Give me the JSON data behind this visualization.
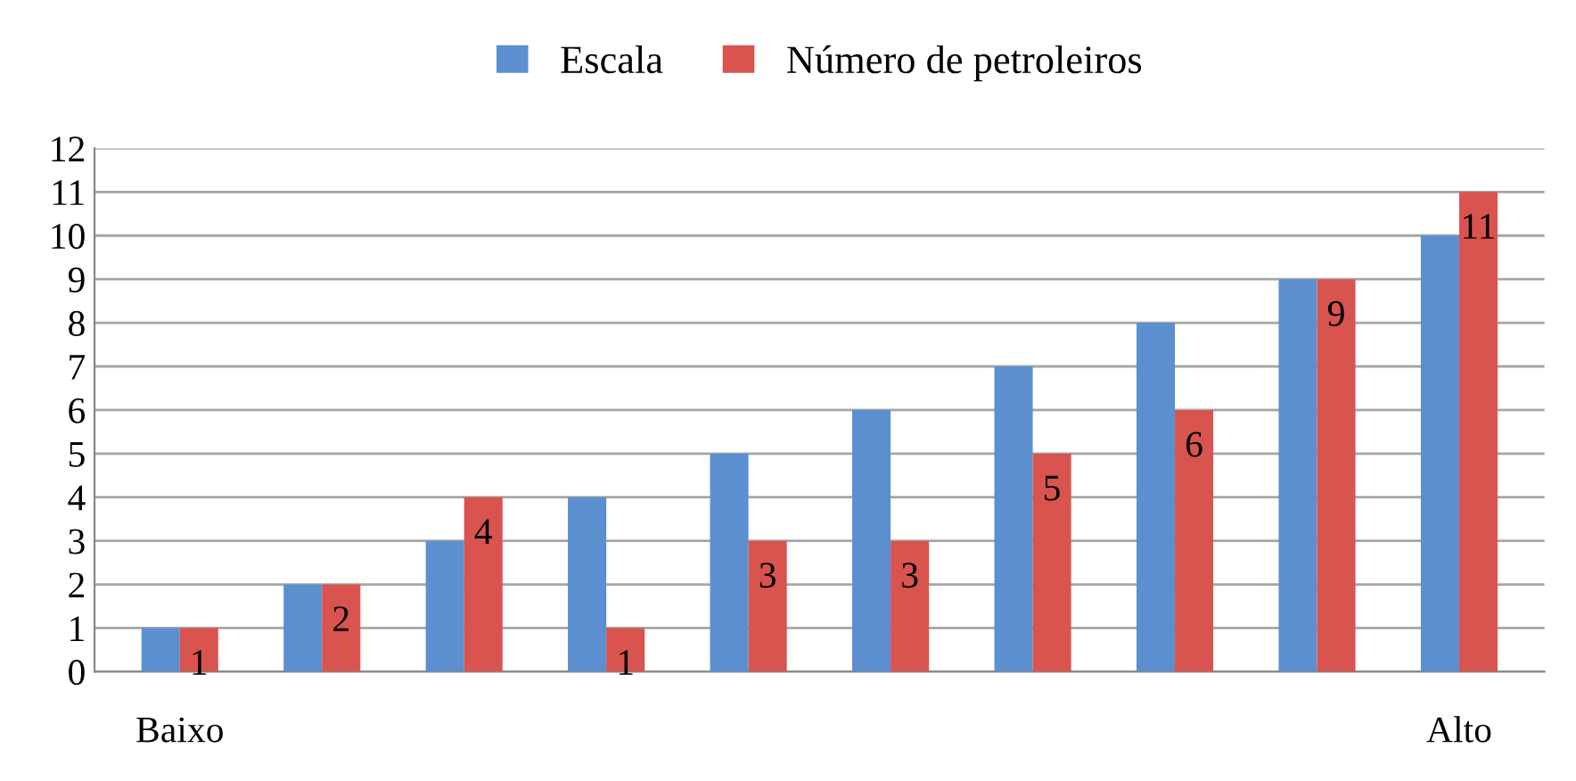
{
  "chart_data": {
    "type": "bar",
    "categories": [
      "Baixo",
      null,
      null,
      null,
      null,
      null,
      null,
      null,
      null,
      "Alto"
    ],
    "series": [
      {
        "name": "Escala",
        "color": "#5b8fd0",
        "values": [
          1,
          2,
          3,
          4,
          5,
          6,
          7,
          8,
          9,
          10
        ]
      },
      {
        "name": "Número de petroleiros",
        "color": "#d9534f",
        "values": [
          1,
          2,
          4,
          1,
          3,
          3,
          5,
          6,
          9,
          11
        ],
        "value_labels": [
          "1",
          "2",
          "4",
          "1",
          "3",
          "3",
          "5",
          "6",
          "9",
          "11"
        ]
      }
    ],
    "ylim": [
      0,
      12
    ],
    "yticks": [
      0,
      1,
      2,
      3,
      4,
      5,
      6,
      7,
      8,
      9,
      10,
      11,
      12
    ],
    "grid": "y",
    "legend": "top"
  }
}
